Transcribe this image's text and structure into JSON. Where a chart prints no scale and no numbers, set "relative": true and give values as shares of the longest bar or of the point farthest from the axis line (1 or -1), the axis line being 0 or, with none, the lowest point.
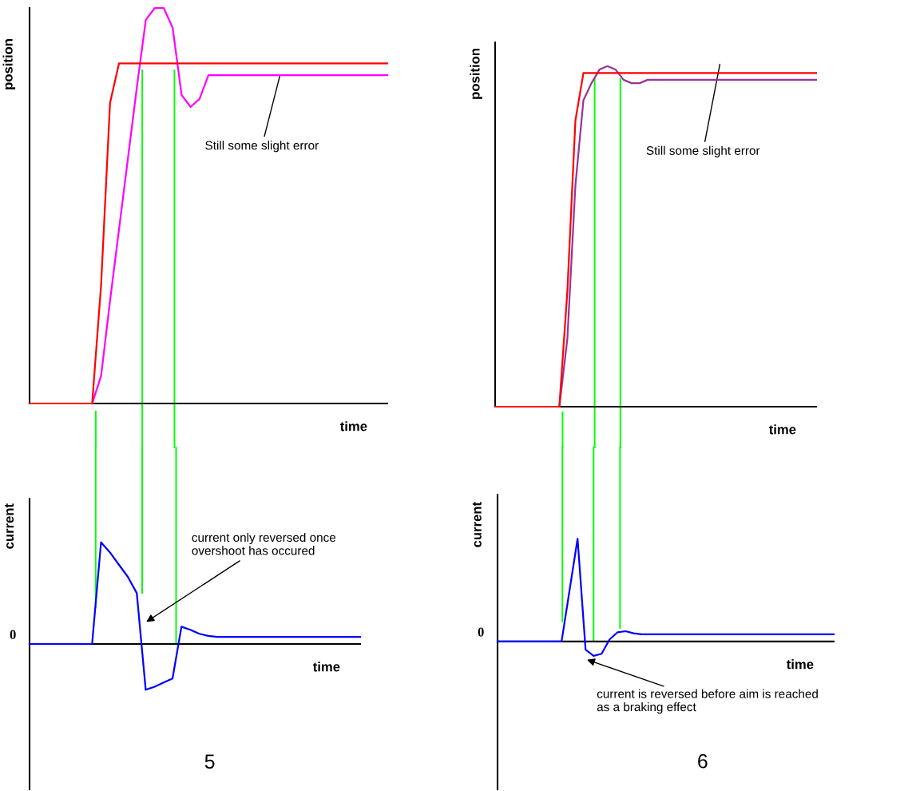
{
  "chart_data": [
    {
      "type": "line",
      "relative": true,
      "ylabel": "position",
      "xlabel": "time",
      "categories": [
        null,
        null,
        null,
        null,
        null,
        null,
        null,
        null,
        null,
        null,
        null,
        null,
        null,
        null,
        null,
        null,
        null,
        null,
        null,
        null,
        null,
        null,
        null,
        null,
        null,
        null,
        null,
        null,
        null,
        null,
        null,
        null,
        null,
        null,
        null,
        null,
        null,
        null,
        null,
        null,
        null
      ],
      "series": [
        {
          "color": "#ff0000",
          "values": [
            0,
            0,
            0,
            0,
            0,
            0,
            0,
            0,
            0.3,
            0.76,
            0.86,
            0.86,
            0.86,
            0.86,
            0.86,
            0.86,
            0.86,
            0.86,
            0.86,
            0.86,
            0.86,
            0.86,
            0.86,
            0.86,
            0.86,
            0.86,
            0.86,
            0.86,
            0.86,
            0.86,
            0.86,
            0.86,
            0.86,
            0.86,
            0.86,
            0.86,
            0.86,
            0.86,
            0.86,
            0.86,
            0.86
          ]
        },
        {
          "color": "#ff00ff",
          "values": [
            null,
            null,
            null,
            null,
            null,
            null,
            null,
            0,
            0.07,
            0.26,
            0.44,
            0.62,
            0.8,
            0.97,
            1.0,
            1.0,
            0.95,
            0.78,
            0.75,
            0.77,
            0.83,
            0.83,
            0.83,
            0.83,
            0.83,
            0.83,
            0.83,
            0.83,
            0.83,
            0.83,
            0.83,
            0.83,
            0.83,
            0.83,
            0.83,
            0.83,
            0.83,
            0.83,
            0.83,
            0.83,
            0.83
          ]
        }
      ],
      "annotations": [
        "Still some slight error"
      ]
    },
    {
      "type": "line",
      "relative": true,
      "ylabel": "position",
      "xlabel": "time",
      "categories": [
        null,
        null,
        null,
        null,
        null,
        null,
        null,
        null,
        null,
        null,
        null,
        null,
        null,
        null,
        null,
        null,
        null,
        null,
        null,
        null,
        null,
        null,
        null,
        null,
        null,
        null,
        null,
        null,
        null,
        null,
        null,
        null,
        null,
        null,
        null,
        null,
        null,
        null,
        null,
        null,
        null
      ],
      "series": [
        {
          "color": "#ff0000",
          "values": [
            0,
            0,
            0,
            0,
            0,
            0,
            0,
            0,
            0,
            0.34,
            0.84,
            0.98,
            0.98,
            0.98,
            0.98,
            0.98,
            0.98,
            0.98,
            0.98,
            0.98,
            0.98,
            0.98,
            0.98,
            0.98,
            0.98,
            0.98,
            0.98,
            0.98,
            0.98,
            0.98,
            0.98,
            0.98,
            0.98,
            0.98,
            0.98,
            0.98,
            0.98,
            0.98,
            0.98,
            0.98,
            0.98
          ]
        },
        {
          "color": "#993399",
          "values": [
            null,
            null,
            null,
            null,
            null,
            null,
            null,
            null,
            0,
            0.2,
            0.65,
            0.9,
            0.95,
            0.99,
            1.0,
            0.99,
            0.96,
            0.95,
            0.95,
            0.96,
            0.96,
            0.96,
            0.96,
            0.96,
            0.96,
            0.96,
            0.96,
            0.96,
            0.96,
            0.96,
            0.96,
            0.96,
            0.96,
            0.96,
            0.96,
            0.96,
            0.96,
            0.96,
            0.96,
            0.96,
            0.96
          ]
        }
      ],
      "annotations": [
        "Still some slight error"
      ]
    },
    {
      "type": "line",
      "relative": true,
      "ylabel": "current",
      "xlabel": "time",
      "categories": [
        null,
        null,
        null,
        null,
        null,
        null,
        null,
        null,
        null,
        null,
        null,
        null,
        null,
        null,
        null,
        null,
        null,
        null,
        null,
        null,
        null,
        null,
        null,
        null,
        null,
        null,
        null,
        null,
        null,
        null,
        null,
        null,
        null,
        null,
        null,
        null,
        null,
        null
      ],
      "series": [
        {
          "color": "#0000ff",
          "values": [
            0,
            0,
            0,
            0,
            0,
            0,
            0,
            0,
            1.0,
            0.9,
            0.78,
            0.66,
            0.5,
            -0.45,
            -0.42,
            -0.38,
            -0.34,
            0.17,
            0.14,
            0.1,
            0.08,
            0.07,
            0.07,
            0.07,
            0.07,
            0.07,
            0.07,
            0.07,
            0.07,
            0.07,
            0.07,
            0.07,
            0.07,
            0.07,
            0.07,
            0.07,
            0.07,
            0.07
          ]
        }
      ],
      "annotations": [
        "0",
        "current only reversed once\novershoot has occured",
        "5"
      ]
    },
    {
      "type": "line",
      "relative": true,
      "ylabel": "current",
      "xlabel": "time",
      "categories": [
        null,
        null,
        null,
        null,
        null,
        null,
        null,
        null,
        null,
        null,
        null,
        null,
        null,
        null,
        null,
        null,
        null,
        null,
        null,
        null,
        null,
        null,
        null,
        null,
        null,
        null,
        null,
        null,
        null,
        null,
        null,
        null,
        null,
        null,
        null,
        null,
        null,
        null,
        null,
        null,
        null,
        null,
        null
      ],
      "series": [
        {
          "color": "#0000ff",
          "values": [
            0,
            0,
            0,
            0,
            0,
            0,
            0,
            0,
            0,
            0.5,
            1.0,
            -0.08,
            -0.14,
            -0.12,
            0.02,
            0.09,
            0.1,
            0.08,
            0.07,
            0.07,
            0.07,
            0.07,
            0.07,
            0.07,
            0.07,
            0.07,
            0.07,
            0.07,
            0.07,
            0.07,
            0.07,
            0.07,
            0.07,
            0.07,
            0.07,
            0.07,
            0.07,
            0.07,
            0.07,
            0.07,
            0.07,
            0.07,
            0.07
          ]
        }
      ],
      "annotations": [
        "0",
        "current is reversed before aim is reached\nas a braking effect",
        "6"
      ]
    }
  ]
}
